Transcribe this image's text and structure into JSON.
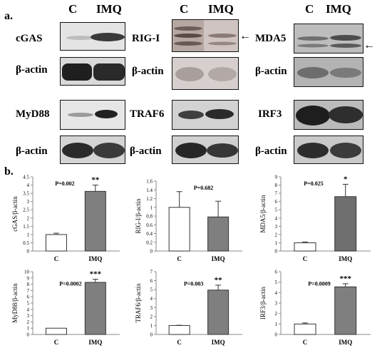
{
  "panel_a_label": "a.",
  "panel_b_label": "b.",
  "lanes": [
    "C",
    "IMQ"
  ],
  "blots": [
    {
      "target": "cGAS",
      "loading": "β-actin"
    },
    {
      "target": "RIG-I",
      "loading": "β-actin"
    },
    {
      "target": "MDA5",
      "loading": "β-actin"
    },
    {
      "target": "MyD88",
      "loading": "β-actin"
    },
    {
      "target": "TRAF6",
      "loading": "β-actin"
    },
    {
      "target": "IRF3",
      "loading": "β-actin"
    }
  ],
  "arrow_glyph": "←",
  "colors": {
    "control_bar": "#ffffff",
    "imq_bar": "#7f7f7f",
    "imq_bar_dark": "#6e6e6e",
    "axis": "#888888"
  },
  "chart_data": [
    {
      "type": "bar",
      "ylabel": "cGAS/β-actin",
      "categories": [
        "C",
        "IMQ"
      ],
      "values": [
        1.0,
        3.62
      ],
      "errors": [
        0.08,
        0.38
      ],
      "ylim": [
        0,
        4.5
      ],
      "yticks": [
        "0",
        "0.5",
        "1",
        "1.5",
        "2",
        "2.5",
        "3",
        "3.5",
        "4",
        "4.5"
      ],
      "pvalue": "P=0.002",
      "significance": "**"
    },
    {
      "type": "bar",
      "ylabel": "RIG-I/β-actin",
      "categories": [
        "C",
        "IMQ"
      ],
      "values": [
        1.0,
        0.78
      ],
      "errors": [
        0.36,
        0.36
      ],
      "ylim": [
        0,
        1.6
      ],
      "yticks": [
        "0",
        "0.2",
        "0.4",
        "0.6",
        "0.8",
        "1",
        "1.2",
        "1.4",
        "1.6"
      ],
      "pvalue": "P=0.682",
      "significance": ""
    },
    {
      "type": "bar",
      "ylabel": "MDA5/β-actin",
      "categories": [
        "C",
        "IMQ"
      ],
      "values": [
        1.0,
        6.6
      ],
      "errors": [
        0.1,
        1.5
      ],
      "ylim": [
        0,
        9
      ],
      "yticks": [
        "0",
        "1",
        "2",
        "3",
        "4",
        "5",
        "6",
        "7",
        "8",
        "9"
      ],
      "pvalue": "P=0.025",
      "significance": "*"
    },
    {
      "type": "bar",
      "ylabel": "MyD88/β-actin",
      "categories": [
        "C",
        "IMQ"
      ],
      "values": [
        1.0,
        8.3
      ],
      "errors": [
        0.0,
        0.5
      ],
      "ylim": [
        0,
        10
      ],
      "yticks": [
        "0",
        "1",
        "2",
        "3",
        "4",
        "5",
        "6",
        "7",
        "8",
        "9",
        "10"
      ],
      "pvalue": "P=0.0002",
      "significance": "***"
    },
    {
      "type": "bar",
      "ylabel": "TRAF6/β-actin",
      "categories": [
        "C",
        "IMQ"
      ],
      "values": [
        1.0,
        4.95
      ],
      "errors": [
        0.03,
        0.55
      ],
      "ylim": [
        0,
        7
      ],
      "yticks": [
        "0",
        "1",
        "2",
        "3",
        "4",
        "5",
        "6",
        "7"
      ],
      "pvalue": "P=0.003",
      "significance": "**"
    },
    {
      "type": "bar",
      "ylabel": "IRF3/β-actin",
      "categories": [
        "C",
        "IMQ"
      ],
      "values": [
        1.0,
        4.55
      ],
      "errors": [
        0.1,
        0.3
      ],
      "ylim": [
        0,
        6
      ],
      "yticks": [
        "0",
        "1",
        "2",
        "3",
        "4",
        "5",
        "6"
      ],
      "pvalue": "P=0.0009",
      "significance": "***"
    }
  ]
}
